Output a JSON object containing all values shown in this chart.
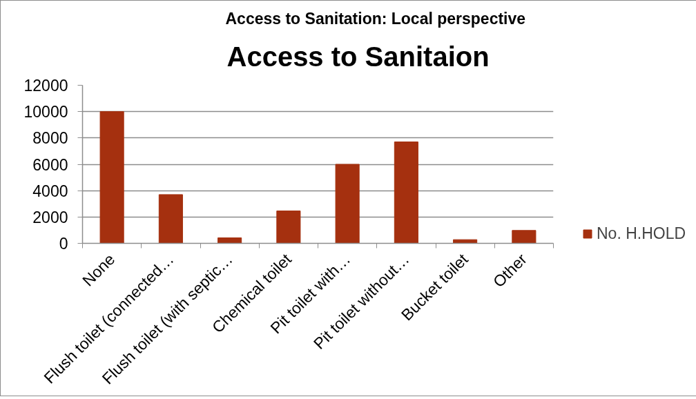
{
  "chart_data": {
    "type": "bar",
    "title": "Access to Sanitaion",
    "annotations": [
      "Access to Sanitation: Local perspective"
    ],
    "categories": [
      "None",
      "Flush toilet (connected…",
      "Flush toilet (with septic…",
      "Chemical toilet",
      "Pit toilet with…",
      "Pit toilet without…",
      "Bucket toilet",
      "Other"
    ],
    "series": [
      {
        "name": "No. H.HOLD",
        "color": "#a5300f",
        "values": [
          10000,
          3700,
          420,
          2460,
          6000,
          7700,
          280,
          980
        ]
      }
    ],
    "ylim": [
      0,
      12000
    ],
    "yticks": [
      0,
      2000,
      4000,
      6000,
      8000,
      10000,
      12000
    ],
    "grid": "y",
    "legend": "right"
  }
}
